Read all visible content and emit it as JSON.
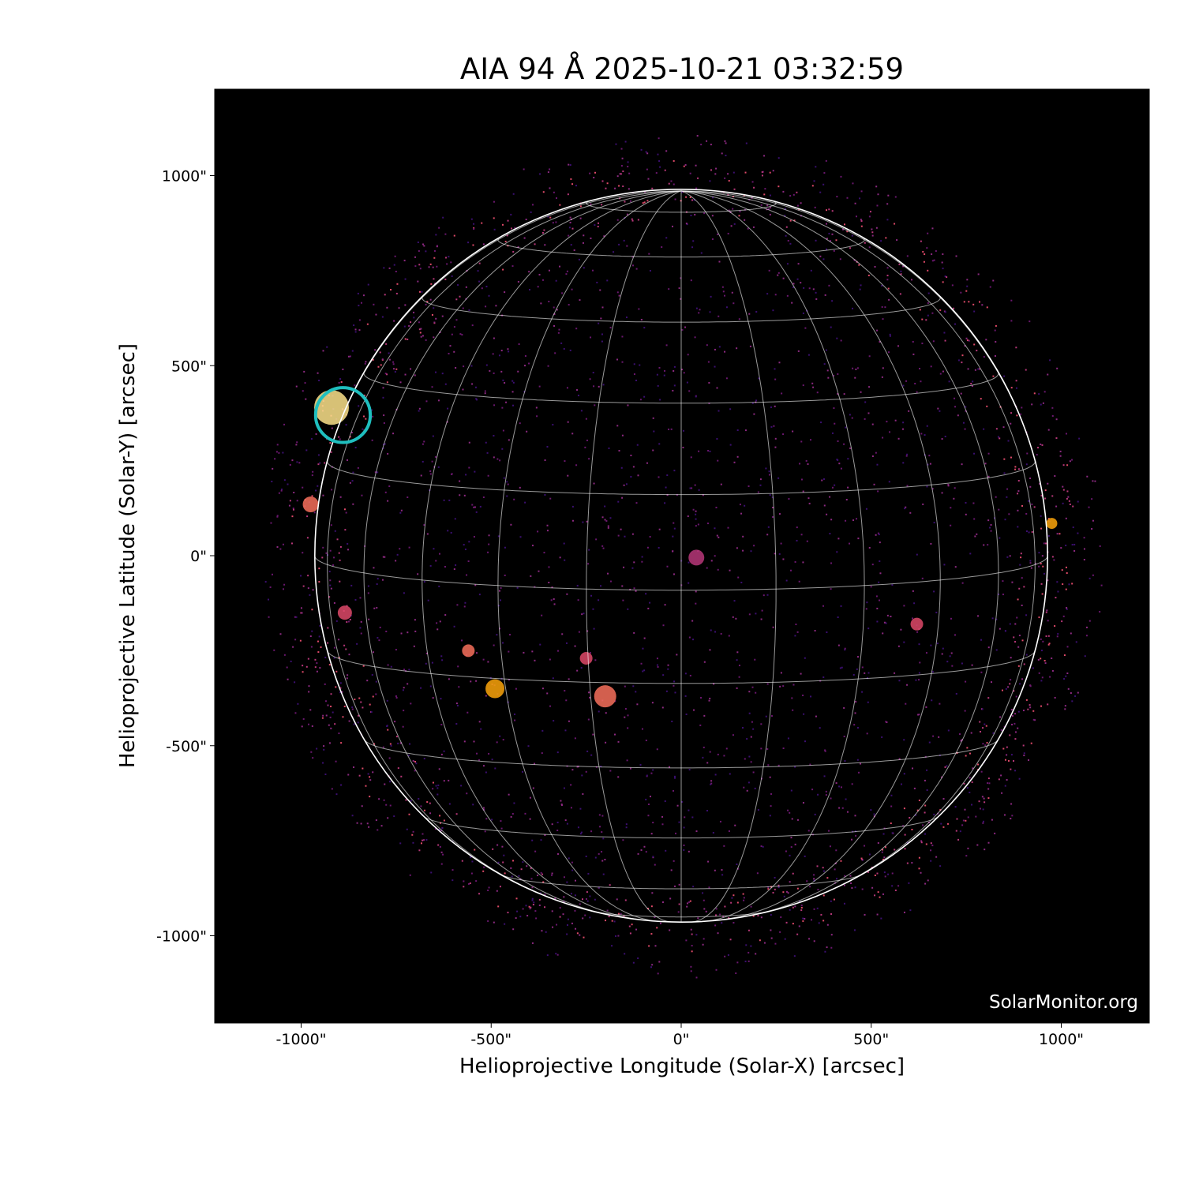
{
  "chart_data": {
    "type": "heatmap",
    "title": "AIA 94 Å 2025-10-21 03:32:59",
    "xlabel": "Helioprojective Longitude (Solar-X) [arcsec]",
    "ylabel": "Helioprojective Latitude (Solar-Y) [arcsec]",
    "xlim": [
      -1230,
      1230
    ],
    "ylim": [
      -1230,
      1230
    ],
    "xticks": [
      -1000,
      -500,
      0,
      500,
      1000
    ],
    "xtick_labels": [
      "-1000\"",
      "-500\"",
      "0\"",
      "500\"",
      "1000\""
    ],
    "yticks": [
      -1000,
      -500,
      0,
      500,
      1000
    ],
    "ytick_labels": [
      "-1000\"",
      "-500\"",
      "0\"",
      "500\"",
      "1000\""
    ],
    "colormap": "inferno",
    "solar_radius_arcsec": 964,
    "grid": {
      "spacing_deg": 15,
      "color": "#ffffff"
    },
    "highlight": {
      "x": -890,
      "y": 370,
      "radius_arcsec": 72,
      "color": "#1fbfbf"
    },
    "background_color": "#000000"
  },
  "watermark": "SolarMonitor.org"
}
